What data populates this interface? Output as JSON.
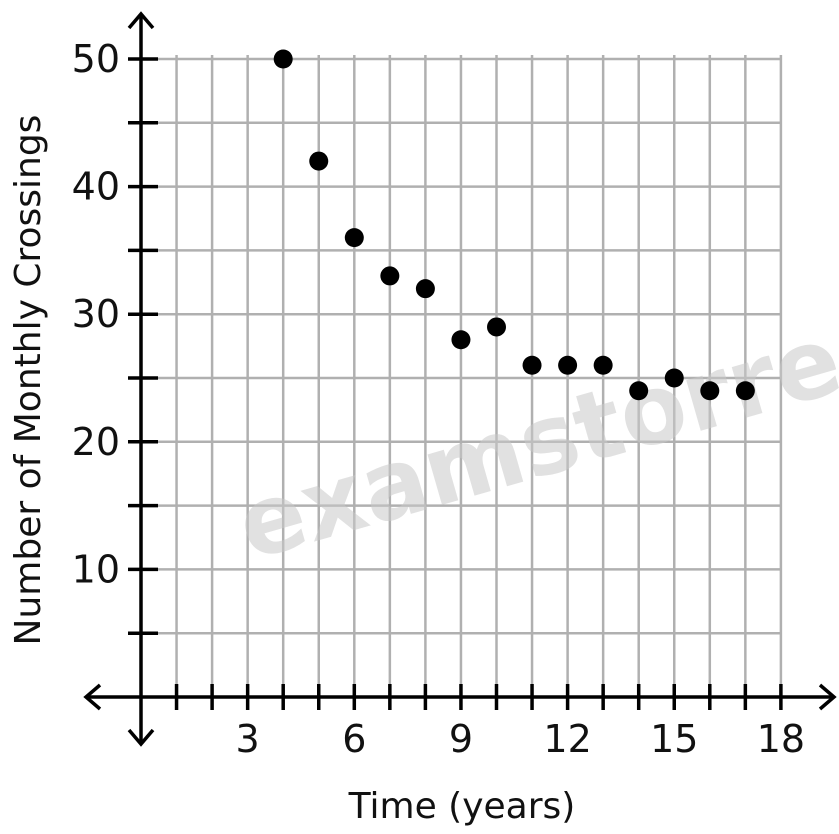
{
  "chart_data": {
    "type": "scatter",
    "xlabel": "Time (years)",
    "ylabel": "Number of Monthly Crossings",
    "xlim": [
      0,
      18
    ],
    "ylim": [
      0,
      50
    ],
    "x_ticks": [
      3,
      6,
      9,
      12,
      15,
      18
    ],
    "y_ticks": [
      10,
      20,
      30,
      40,
      50
    ],
    "x_minor_step": 1,
    "y_minor_step": 5,
    "grid": true,
    "points": [
      {
        "x": 4,
        "y": 50
      },
      {
        "x": 5,
        "y": 42
      },
      {
        "x": 6,
        "y": 36
      },
      {
        "x": 7,
        "y": 33
      },
      {
        "x": 8,
        "y": 32
      },
      {
        "x": 9,
        "y": 28
      },
      {
        "x": 10,
        "y": 29
      },
      {
        "x": 11,
        "y": 26
      },
      {
        "x": 12,
        "y": 26
      },
      {
        "x": 13,
        "y": 26
      },
      {
        "x": 14,
        "y": 24
      },
      {
        "x": 15,
        "y": 25
      },
      {
        "x": 16,
        "y": 24
      },
      {
        "x": 17,
        "y": 24
      }
    ],
    "point_color": "#000000",
    "grid_color": "#b0b0b0",
    "watermark": "examstorrent.c"
  }
}
